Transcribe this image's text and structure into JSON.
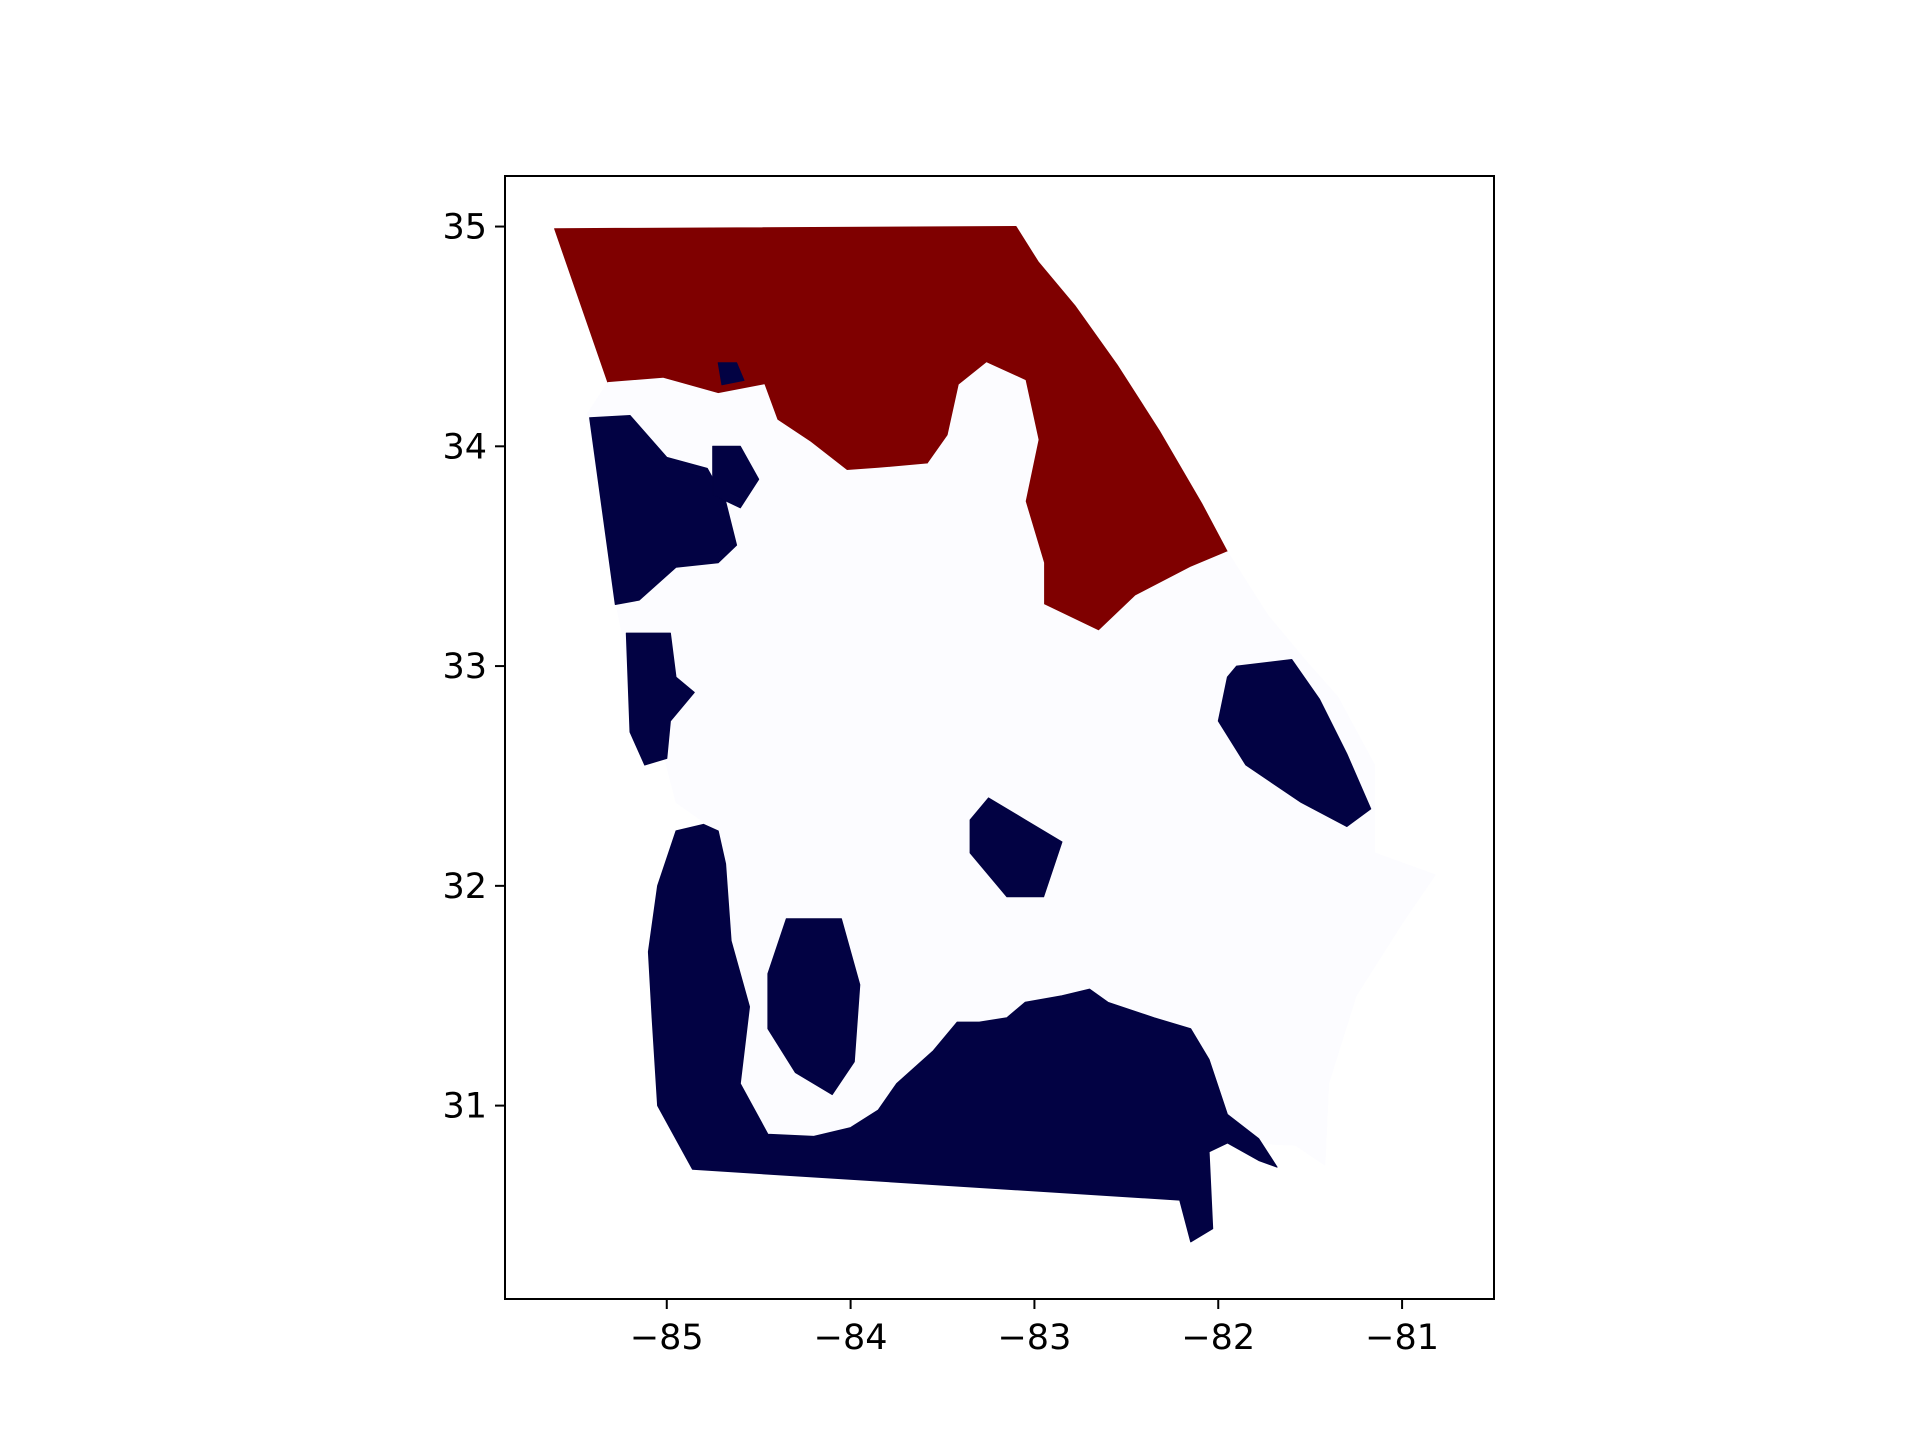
{
  "chart_data": {
    "type": "map",
    "title": "",
    "xlabel": "",
    "ylabel": "",
    "xlim": [
      -85.88,
      -80.5
    ],
    "ylim": [
      30.12,
      35.23
    ],
    "x_ticks": [
      {
        "value": -85,
        "label": "−85"
      },
      {
        "value": -84,
        "label": "−84"
      },
      {
        "value": -83,
        "label": "−83"
      },
      {
        "value": -82,
        "label": "−82"
      },
      {
        "value": -81,
        "label": "−81"
      }
    ],
    "y_ticks": [
      {
        "value": 31,
        "label": "31"
      },
      {
        "value": 32,
        "label": "32"
      },
      {
        "value": 33,
        "label": "33"
      },
      {
        "value": 34,
        "label": "34"
      },
      {
        "value": 35,
        "label": "35"
      }
    ],
    "grid": false,
    "colors": {
      "district_a": "#7f0000",
      "district_b": "#020243",
      "background_region": "#fcfcff",
      "axes_frame": "#000000"
    },
    "regions": [
      {
        "name": "northeast-district",
        "color": "#7f0000",
        "outline": [
          [
            -85.61,
            34.99
          ],
          [
            -83.1,
            35.0
          ],
          [
            -82.98,
            34.84
          ],
          [
            -82.78,
            34.64
          ],
          [
            -82.55,
            34.37
          ],
          [
            -82.32,
            34.07
          ],
          [
            -82.09,
            33.74
          ],
          [
            -81.95,
            33.52
          ],
          [
            -82.15,
            33.45
          ],
          [
            -82.45,
            33.32
          ],
          [
            -82.65,
            33.16
          ],
          [
            -82.95,
            33.28
          ],
          [
            -82.95,
            33.47
          ],
          [
            -83.05,
            33.75
          ],
          [
            -82.98,
            34.03
          ],
          [
            -83.05,
            34.3
          ],
          [
            -83.26,
            34.38
          ],
          [
            -83.41,
            34.28
          ],
          [
            -83.47,
            34.05
          ],
          [
            -83.58,
            33.92
          ],
          [
            -83.85,
            33.9
          ],
          [
            -84.02,
            33.89
          ],
          [
            -84.22,
            34.02
          ],
          [
            -84.4,
            34.12
          ],
          [
            -84.47,
            34.28
          ],
          [
            -84.72,
            34.24
          ],
          [
            -85.02,
            34.31
          ],
          [
            -85.32,
            34.29
          ]
        ]
      },
      {
        "name": "remaining-area",
        "color": "#fcfcff",
        "outline": [
          [
            -85.32,
            34.29
          ],
          [
            -85.02,
            34.31
          ],
          [
            -84.72,
            34.24
          ],
          [
            -84.47,
            34.28
          ],
          [
            -84.4,
            34.12
          ],
          [
            -84.22,
            34.02
          ],
          [
            -84.02,
            33.89
          ],
          [
            -83.85,
            33.9
          ],
          [
            -83.58,
            33.92
          ],
          [
            -83.47,
            34.05
          ],
          [
            -83.41,
            34.28
          ],
          [
            -83.26,
            34.38
          ],
          [
            -83.05,
            34.3
          ],
          [
            -82.98,
            34.03
          ],
          [
            -83.05,
            33.75
          ],
          [
            -82.95,
            33.47
          ],
          [
            -82.95,
            33.28
          ],
          [
            -82.65,
            33.16
          ],
          [
            -82.45,
            33.32
          ],
          [
            -82.15,
            33.45
          ],
          [
            -81.95,
            33.52
          ],
          [
            -81.73,
            33.23
          ],
          [
            -81.52,
            33.02
          ],
          [
            -81.35,
            32.86
          ],
          [
            -81.15,
            32.55
          ],
          [
            -81.15,
            32.15
          ],
          [
            -80.82,
            32.05
          ],
          [
            -81.0,
            31.83
          ],
          [
            -81.25,
            31.5
          ],
          [
            -81.4,
            31.1
          ],
          [
            -81.42,
            30.73
          ],
          [
            -81.58,
            30.82
          ],
          [
            -82.08,
            30.84
          ],
          [
            -82.15,
            31.18
          ],
          [
            -82.85,
            31.35
          ],
          [
            -83.55,
            31.1
          ],
          [
            -84.15,
            30.83
          ],
          [
            -84.6,
            30.85
          ],
          [
            -84.65,
            31.5
          ],
          [
            -84.72,
            32.0
          ],
          [
            -84.78,
            32.28
          ],
          [
            -84.95,
            32.38
          ],
          [
            -85.02,
            32.61
          ],
          [
            -85.18,
            32.88
          ],
          [
            -85.28,
            33.3
          ],
          [
            -85.43,
            34.15
          ]
        ]
      },
      {
        "name": "south-west-district",
        "color": "#020243",
        "outline": [
          [
            -84.86,
            30.71
          ],
          [
            -82.21,
            30.57
          ],
          [
            -82.15,
            30.38
          ],
          [
            -82.03,
            30.44
          ],
          [
            -82.05,
            30.79
          ],
          [
            -81.95,
            30.83
          ],
          [
            -81.78,
            30.75
          ],
          [
            -81.68,
            30.72
          ],
          [
            -81.78,
            30.85
          ],
          [
            -81.95,
            30.96
          ],
          [
            -82.05,
            31.21
          ],
          [
            -82.15,
            31.35
          ],
          [
            -82.35,
            31.4
          ],
          [
            -82.6,
            31.47
          ],
          [
            -82.7,
            31.53
          ],
          [
            -82.85,
            31.5
          ],
          [
            -83.05,
            31.47
          ],
          [
            -83.15,
            31.4
          ],
          [
            -83.3,
            31.38
          ],
          [
            -83.42,
            31.38
          ],
          [
            -83.55,
            31.25
          ],
          [
            -83.75,
            31.1
          ],
          [
            -83.85,
            30.98
          ],
          [
            -84.0,
            30.9
          ],
          [
            -84.2,
            30.86
          ],
          [
            -84.45,
            30.87
          ],
          [
            -84.6,
            31.1
          ],
          [
            -84.55,
            31.45
          ],
          [
            -84.65,
            31.75
          ],
          [
            -84.68,
            32.1
          ],
          [
            -84.72,
            32.25
          ],
          [
            -84.8,
            32.28
          ],
          [
            -84.95,
            32.25
          ],
          [
            -85.05,
            32.0
          ],
          [
            -85.1,
            31.7
          ],
          [
            -85.08,
            31.4
          ],
          [
            -85.05,
            31.0
          ]
        ]
      },
      {
        "name": "west-central-cluster",
        "color": "#020243",
        "outline": [
          [
            -85.42,
            34.13
          ],
          [
            -85.2,
            34.14
          ],
          [
            -85.0,
            33.95
          ],
          [
            -84.78,
            33.9
          ],
          [
            -84.68,
            33.75
          ],
          [
            -84.62,
            33.55
          ],
          [
            -84.72,
            33.47
          ],
          [
            -84.95,
            33.45
          ],
          [
            -85.15,
            33.3
          ],
          [
            -85.28,
            33.28
          ]
        ]
      },
      {
        "name": "west-border-cluster",
        "color": "#020243",
        "outline": [
          [
            -85.22,
            33.15
          ],
          [
            -84.98,
            33.15
          ],
          [
            -84.95,
            32.95
          ],
          [
            -84.85,
            32.88
          ],
          [
            -84.98,
            32.75
          ],
          [
            -85.0,
            32.58
          ],
          [
            -85.12,
            32.55
          ],
          [
            -85.2,
            32.7
          ]
        ]
      },
      {
        "name": "east-cluster",
        "color": "#020243",
        "outline": [
          [
            -81.9,
            33.0
          ],
          [
            -81.6,
            33.03
          ],
          [
            -81.45,
            32.85
          ],
          [
            -81.3,
            32.6
          ],
          [
            -81.17,
            32.35
          ],
          [
            -81.3,
            32.27
          ],
          [
            -81.55,
            32.38
          ],
          [
            -81.85,
            32.55
          ],
          [
            -82.0,
            32.75
          ],
          [
            -81.95,
            32.95
          ]
        ]
      },
      {
        "name": "south-central-block",
        "color": "#020243",
        "outline": [
          [
            -84.35,
            31.85
          ],
          [
            -84.05,
            31.85
          ],
          [
            -83.95,
            31.55
          ],
          [
            -83.98,
            31.2
          ],
          [
            -84.1,
            31.05
          ],
          [
            -84.3,
            31.15
          ],
          [
            -84.45,
            31.35
          ],
          [
            -84.45,
            31.6
          ]
        ]
      },
      {
        "name": "central-diagonal-block",
        "color": "#020243",
        "outline": [
          [
            -83.25,
            32.4
          ],
          [
            -83.05,
            32.3
          ],
          [
            -82.85,
            32.2
          ],
          [
            -82.95,
            31.95
          ],
          [
            -83.15,
            31.95
          ],
          [
            -83.35,
            32.15
          ],
          [
            -83.35,
            32.3
          ]
        ]
      },
      {
        "name": "metro-west-pocket",
        "color": "#020243",
        "outline": [
          [
            -84.75,
            34.0
          ],
          [
            -84.6,
            34.0
          ],
          [
            -84.5,
            33.85
          ],
          [
            -84.6,
            33.72
          ],
          [
            -84.75,
            33.78
          ]
        ]
      },
      {
        "name": "north-small-pocket",
        "color": "#020243",
        "outline": [
          [
            -84.72,
            34.38
          ],
          [
            -84.62,
            34.38
          ],
          [
            -84.58,
            34.3
          ],
          [
            -84.7,
            34.28
          ]
        ]
      }
    ]
  }
}
